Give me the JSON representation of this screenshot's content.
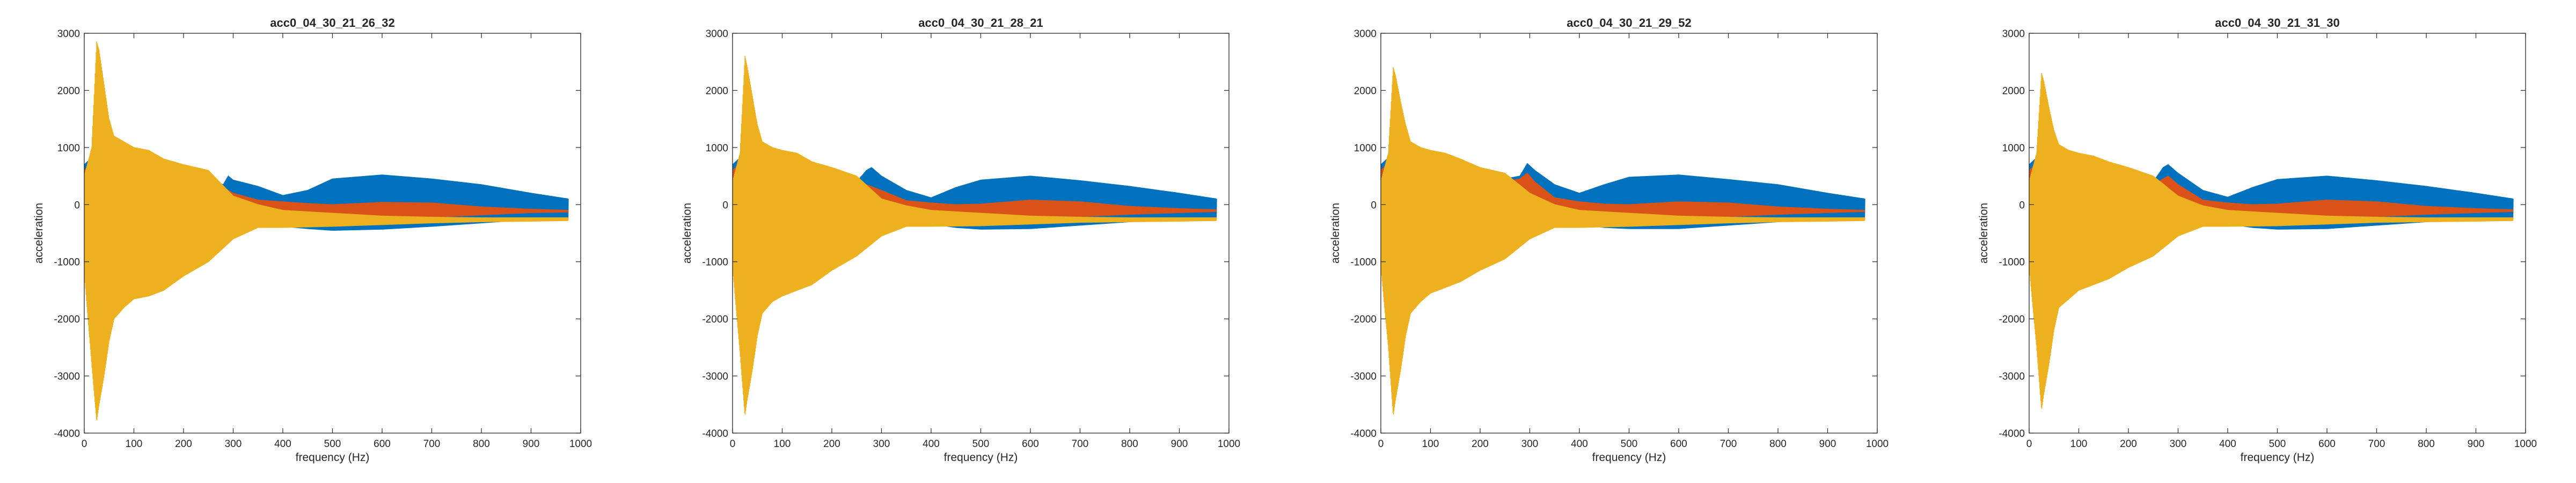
{
  "colors": {
    "series1": "#0072BD",
    "series2": "#D95319",
    "series3": "#EDB120",
    "axis": "#262626",
    "background": "#FFFFFF"
  },
  "chart_data": [
    {
      "type": "line",
      "title": "acc0_04_30_21_26_32",
      "xlabel": "frequency (Hz)",
      "ylabel": "acceleration",
      "xlim": [
        0,
        1000
      ],
      "ylim": [
        -4000,
        3000
      ],
      "xticks": [
        0,
        100,
        200,
        300,
        400,
        500,
        600,
        700,
        800,
        900,
        1000
      ],
      "yticks": [
        -4000,
        -3000,
        -2000,
        -1000,
        0,
        1000,
        2000,
        3000
      ],
      "grid": false,
      "series": [
        {
          "color": "series1",
          "x": [
            0,
            25,
            50,
            100,
            150,
            200,
            250,
            280,
            290,
            300,
            350,
            400,
            450,
            500,
            600,
            700,
            800,
            900,
            975
          ],
          "upper": [
            700,
            900,
            800,
            700,
            650,
            600,
            450,
            350,
            500,
            430,
            320,
            160,
            250,
            450,
            520,
            450,
            350,
            200,
            100
          ],
          "lower": [
            -700,
            -900,
            -800,
            -700,
            -650,
            -600,
            -400,
            -300,
            -180,
            -200,
            -250,
            -380,
            -420,
            -450,
            -430,
            -380,
            -320,
            -260,
            -230
          ]
        },
        {
          "color": "series2",
          "x": [
            0,
            25,
            50,
            100,
            150,
            200,
            250,
            280,
            300,
            350,
            400,
            450,
            500,
            600,
            700,
            800,
            900,
            975
          ],
          "upper": [
            600,
            800,
            700,
            600,
            550,
            500,
            350,
            300,
            200,
            80,
            50,
            20,
            0,
            40,
            30,
            -40,
            -80,
            -100
          ],
          "lower": [
            -600,
            -800,
            -700,
            -600,
            -550,
            -500,
            -380,
            -280,
            -200,
            -160,
            -230,
            -260,
            -270,
            -250,
            -220,
            -180,
            -140,
            -130
          ]
        },
        {
          "color": "series3",
          "x": [
            0,
            15,
            25,
            30,
            40,
            50,
            60,
            80,
            100,
            130,
            160,
            200,
            250,
            300,
            350,
            400,
            500,
            600,
            700,
            800,
            900,
            975
          ],
          "upper": [
            500,
            1000,
            2850,
            2700,
            2100,
            1500,
            1200,
            1100,
            1000,
            950,
            800,
            700,
            600,
            150,
            0,
            -100,
            -150,
            -200,
            -220,
            -230,
            -230,
            -230
          ],
          "lower": [
            -1200,
            -2800,
            -3800,
            -3500,
            -3000,
            -2400,
            -2000,
            -1800,
            -1650,
            -1600,
            -1500,
            -1250,
            -1000,
            -600,
            -400,
            -400,
            -380,
            -350,
            -320,
            -300,
            -290,
            -280
          ]
        }
      ]
    },
    {
      "type": "line",
      "title": "acc0_04_30_21_28_21",
      "xlabel": "frequency (Hz)",
      "ylabel": "acceleration",
      "xlim": [
        0,
        1000
      ],
      "ylim": [
        -4000,
        3000
      ],
      "xticks": [
        0,
        100,
        200,
        300,
        400,
        500,
        600,
        700,
        800,
        900,
        1000
      ],
      "yticks": [
        -4000,
        -3000,
        -2000,
        -1000,
        0,
        1000,
        2000,
        3000
      ],
      "grid": false,
      "series": [
        {
          "color": "series1",
          "x": [
            0,
            25,
            50,
            100,
            150,
            200,
            250,
            270,
            280,
            300,
            350,
            400,
            450,
            500,
            600,
            700,
            800,
            900,
            975
          ],
          "upper": [
            700,
            900,
            800,
            700,
            650,
            550,
            400,
            600,
            650,
            500,
            250,
            120,
            300,
            430,
            500,
            420,
            320,
            200,
            100
          ],
          "lower": [
            -700,
            -900,
            -800,
            -700,
            -650,
            -550,
            -400,
            -220,
            -200,
            -220,
            -260,
            -340,
            -400,
            -430,
            -420,
            -360,
            -300,
            -250,
            -220
          ]
        },
        {
          "color": "series2",
          "x": [
            0,
            25,
            50,
            100,
            150,
            200,
            250,
            270,
            300,
            350,
            400,
            450,
            500,
            600,
            700,
            800,
            900,
            975
          ],
          "upper": [
            600,
            800,
            700,
            600,
            550,
            480,
            350,
            350,
            250,
            70,
            30,
            0,
            10,
            80,
            50,
            -30,
            -70,
            -90
          ],
          "lower": [
            -600,
            -800,
            -700,
            -600,
            -550,
            -480,
            -380,
            -300,
            -220,
            -170,
            -220,
            -260,
            -270,
            -250,
            -210,
            -170,
            -140,
            -120
          ]
        },
        {
          "color": "series3",
          "x": [
            0,
            15,
            25,
            30,
            40,
            50,
            60,
            80,
            100,
            130,
            160,
            200,
            250,
            300,
            350,
            400,
            500,
            600,
            700,
            800,
            900,
            975
          ],
          "upper": [
            400,
            900,
            2600,
            2400,
            1900,
            1400,
            1100,
            1000,
            950,
            900,
            750,
            650,
            500,
            100,
            -20,
            -100,
            -150,
            -200,
            -220,
            -230,
            -230,
            -230
          ],
          "lower": [
            -1100,
            -2600,
            -3700,
            -3400,
            -2900,
            -2300,
            -1900,
            -1700,
            -1600,
            -1500,
            -1400,
            -1150,
            -900,
            -550,
            -380,
            -380,
            -370,
            -340,
            -310,
            -300,
            -290,
            -280
          ]
        }
      ]
    },
    {
      "type": "line",
      "title": "acc0_04_30_21_29_52",
      "xlabel": "frequency (Hz)",
      "ylabel": "acceleration",
      "xlim": [
        0,
        1000
      ],
      "ylim": [
        -4000,
        3000
      ],
      "xticks": [
        0,
        100,
        200,
        300,
        400,
        500,
        600,
        700,
        800,
        900,
        1000
      ],
      "yticks": [
        -4000,
        -3000,
        -2000,
        -1000,
        0,
        1000,
        2000,
        3000
      ],
      "grid": false,
      "series": [
        {
          "color": "series1",
          "x": [
            0,
            25,
            50,
            100,
            150,
            200,
            250,
            280,
            295,
            310,
            350,
            400,
            450,
            500,
            600,
            700,
            800,
            900,
            975
          ],
          "upper": [
            700,
            900,
            800,
            700,
            650,
            550,
            450,
            500,
            720,
            600,
            350,
            200,
            350,
            480,
            520,
            440,
            350,
            200,
            100
          ],
          "lower": [
            -700,
            -900,
            -800,
            -700,
            -650,
            -550,
            -450,
            -300,
            -250,
            -250,
            -270,
            -350,
            -400,
            -420,
            -420,
            -360,
            -300,
            -250,
            -220
          ]
        },
        {
          "color": "series2",
          "x": [
            0,
            25,
            50,
            100,
            150,
            200,
            250,
            280,
            295,
            310,
            350,
            400,
            450,
            500,
            600,
            700,
            800,
            900,
            975
          ],
          "upper": [
            600,
            800,
            700,
            600,
            550,
            480,
            400,
            450,
            550,
            400,
            120,
            50,
            10,
            0,
            50,
            30,
            -40,
            -80,
            -100
          ],
          "lower": [
            -600,
            -800,
            -700,
            -600,
            -550,
            -480,
            -420,
            -350,
            -250,
            -220,
            -200,
            -240,
            -260,
            -270,
            -250,
            -210,
            -170,
            -140,
            -120
          ]
        },
        {
          "color": "series3",
          "x": [
            0,
            15,
            25,
            30,
            40,
            50,
            60,
            80,
            100,
            130,
            160,
            200,
            250,
            300,
            350,
            400,
            500,
            600,
            700,
            800,
            900,
            975
          ],
          "upper": [
            400,
            900,
            2400,
            2250,
            1800,
            1400,
            1100,
            1000,
            950,
            900,
            800,
            650,
            550,
            200,
            0,
            -100,
            -150,
            -200,
            -220,
            -230,
            -230,
            -230
          ],
          "lower": [
            -1100,
            -2500,
            -3700,
            -3400,
            -2900,
            -2300,
            -1900,
            -1700,
            -1550,
            -1450,
            -1350,
            -1150,
            -950,
            -600,
            -400,
            -400,
            -380,
            -350,
            -320,
            -300,
            -290,
            -280
          ]
        }
      ]
    },
    {
      "type": "line",
      "title": "acc0_04_30_21_31_30",
      "xlabel": "frequency (Hz)",
      "ylabel": "acceleration",
      "xlim": [
        0,
        1000
      ],
      "ylim": [
        -4000,
        3000
      ],
      "xticks": [
        0,
        100,
        200,
        300,
        400,
        500,
        600,
        700,
        800,
        900,
        1000
      ],
      "yticks": [
        -4000,
        -3000,
        -2000,
        -1000,
        0,
        1000,
        2000,
        3000
      ],
      "grid": false,
      "series": [
        {
          "color": "series1",
          "x": [
            0,
            25,
            50,
            100,
            150,
            200,
            250,
            270,
            280,
            300,
            350,
            400,
            450,
            500,
            600,
            700,
            800,
            900,
            975
          ],
          "upper": [
            700,
            900,
            800,
            700,
            650,
            550,
            400,
            650,
            700,
            550,
            250,
            130,
            300,
            440,
            500,
            420,
            320,
            200,
            100
          ],
          "lower": [
            -700,
            -900,
            -800,
            -700,
            -650,
            -550,
            -420,
            -300,
            -250,
            -250,
            -270,
            -340,
            -400,
            -430,
            -420,
            -360,
            -300,
            -250,
            -220
          ]
        },
        {
          "color": "series2",
          "x": [
            0,
            25,
            50,
            100,
            150,
            200,
            250,
            270,
            280,
            300,
            350,
            400,
            450,
            500,
            600,
            700,
            800,
            900,
            975
          ],
          "upper": [
            600,
            800,
            700,
            600,
            550,
            480,
            350,
            450,
            500,
            350,
            80,
            30,
            0,
            10,
            80,
            50,
            -30,
            -70,
            -90
          ],
          "lower": [
            -600,
            -800,
            -700,
            -600,
            -550,
            -480,
            -400,
            -320,
            -260,
            -220,
            -180,
            -230,
            -260,
            -270,
            -250,
            -210,
            -170,
            -140,
            -120
          ]
        },
        {
          "color": "series3",
          "x": [
            0,
            15,
            25,
            30,
            40,
            50,
            60,
            80,
            100,
            130,
            160,
            200,
            250,
            300,
            350,
            400,
            500,
            600,
            700,
            800,
            900,
            975
          ],
          "upper": [
            400,
            900,
            2300,
            2150,
            1700,
            1300,
            1050,
            950,
            900,
            850,
            750,
            650,
            500,
            150,
            -20,
            -100,
            -150,
            -200,
            -220,
            -230,
            -230,
            -230
          ],
          "lower": [
            -1100,
            -2500,
            -3600,
            -3300,
            -2800,
            -2200,
            -1800,
            -1650,
            -1500,
            -1400,
            -1300,
            -1100,
            -900,
            -550,
            -380,
            -380,
            -370,
            -340,
            -310,
            -300,
            -290,
            -280
          ]
        }
      ]
    }
  ]
}
